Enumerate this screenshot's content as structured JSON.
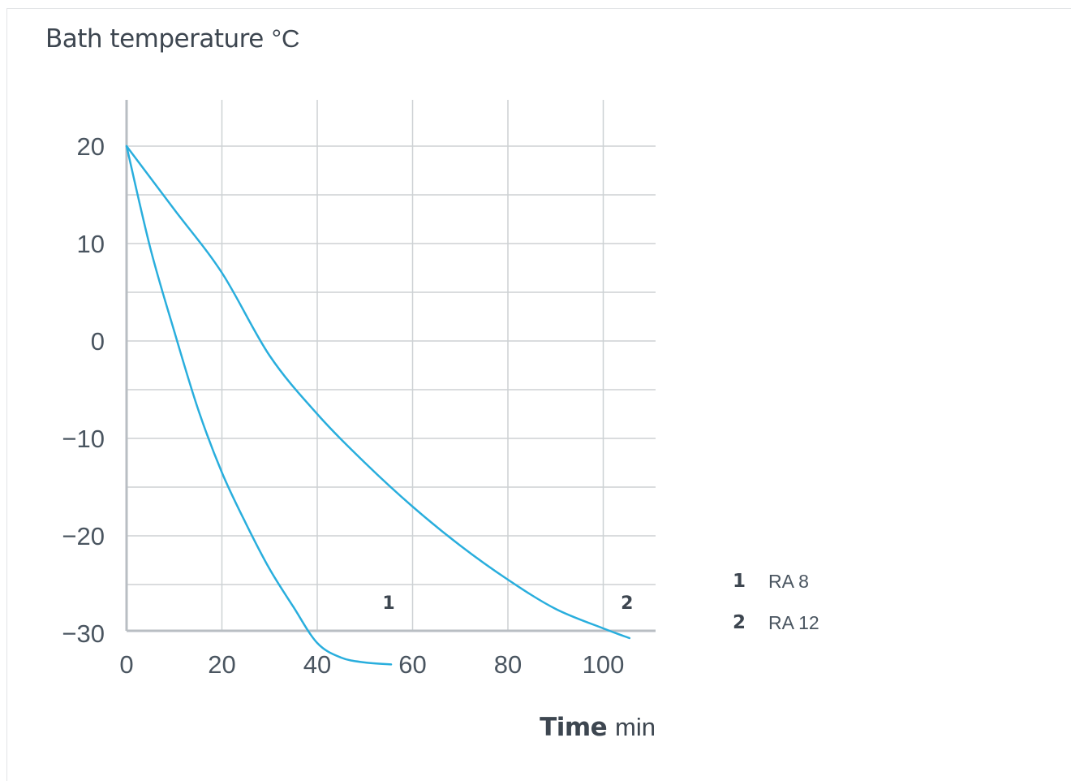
{
  "chart_data": {
    "type": "line",
    "ylabel": "Bath temperature",
    "ylabel_unit": "°C",
    "xlabel": "Time",
    "xlabel_unit": "min",
    "xlim": [
      0,
      110
    ],
    "ylim": [
      -30,
      25
    ],
    "x_ticks": [
      "0",
      "20",
      "40",
      "60",
      "80",
      "100"
    ],
    "x_tick_values": [
      0,
      20,
      40,
      60,
      80,
      100
    ],
    "y_ticks": [
      "20",
      "10",
      "0",
      "−10",
      "−20",
      "−30"
    ],
    "y_tick_values": [
      20,
      10,
      0,
      -10,
      -20,
      -30
    ],
    "grid": true,
    "line_color": "#29aedd",
    "grid_color": "#cdd1d4",
    "axis_color": "#b9bec3",
    "series": [
      {
        "label": "1",
        "x": [
          0,
          5,
          10,
          15,
          20,
          25,
          30,
          35,
          40,
          45,
          50,
          55.5
        ],
        "y": [
          20,
          9.5,
          1.0,
          -7.0,
          -13.5,
          -18.7,
          -23.4,
          -27.3,
          -31,
          -32.5,
          -33.0,
          -33.2
        ]
      },
      {
        "label": "2",
        "x": [
          0,
          10,
          20,
          30,
          40,
          50,
          60,
          70,
          80,
          90,
          100,
          105.5
        ],
        "y": [
          20,
          13.5,
          7.0,
          -1.5,
          -7.5,
          -12.5,
          -17.0,
          -21.0,
          -24.5,
          -27.5,
          -29.5,
          -30.5
        ]
      }
    ],
    "legend": [
      {
        "num": "1",
        "name": "RA 8"
      },
      {
        "num": "2",
        "name": "RA 12"
      }
    ],
    "legend_position": "right"
  }
}
